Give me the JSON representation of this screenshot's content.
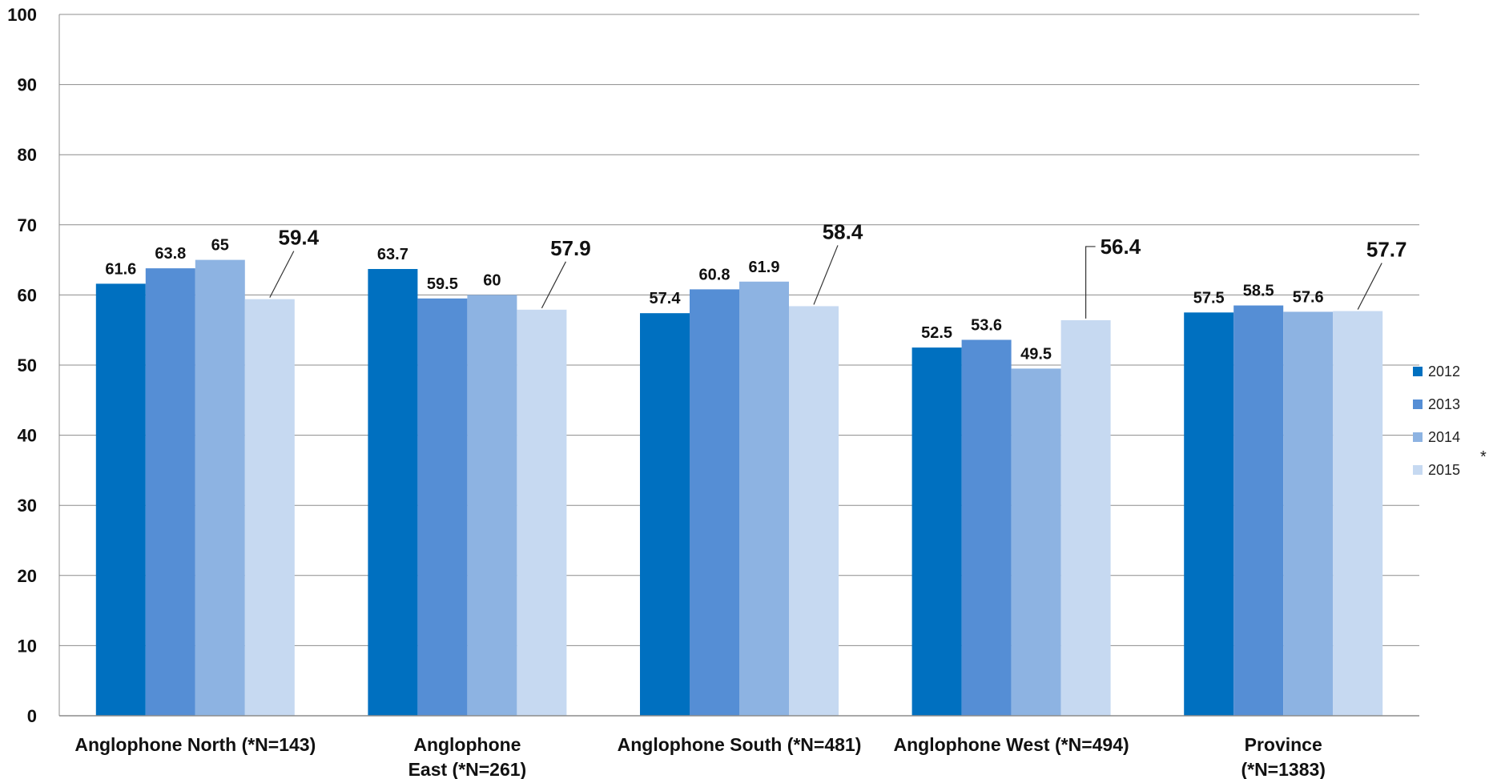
{
  "chart_data": {
    "type": "bar",
    "categories": [
      [
        "Anglophone North (*N=143)"
      ],
      [
        "Anglophone",
        "East (*N=261)"
      ],
      [
        "Anglophone South (*N=481)"
      ],
      [
        "Anglophone West (*N=494)"
      ],
      [
        "Province",
        "(*N=1383)"
      ]
    ],
    "series": [
      {
        "name": "2012",
        "color": "#0070C0",
        "values": [
          61.6,
          63.7,
          57.4,
          52.5,
          57.5
        ],
        "labels": [
          "61.6",
          "63.7",
          "57.4",
          "52.5",
          "57.5"
        ]
      },
      {
        "name": "2013",
        "color": "#558ED5",
        "values": [
          63.8,
          59.5,
          60.8,
          53.6,
          58.5
        ],
        "labels": [
          "63.8",
          "59.5",
          "60.8",
          "53.6",
          "58.5"
        ]
      },
      {
        "name": "2014",
        "color": "#8DB3E2",
        "values": [
          65,
          60,
          61.9,
          49.5,
          57.6
        ],
        "labels": [
          "65",
          "60",
          "61.9",
          "49.5",
          "57.6"
        ]
      },
      {
        "name": "2015",
        "color": "#C6D9F1",
        "values": [
          59.4,
          57.9,
          58.4,
          56.4,
          57.7
        ],
        "labels": [
          "59.4",
          "57.9",
          "58.4",
          "56.4",
          "57.7"
        ]
      }
    ],
    "ylim": [
      0,
      100
    ],
    "yticks": [
      "0",
      "10",
      "20",
      "30",
      "40",
      "50",
      "60",
      "70",
      "80",
      "90",
      "100"
    ],
    "grid": true,
    "legend_placement": "right",
    "legend_note": "*",
    "title": "",
    "xlabel": "",
    "ylabel": ""
  }
}
